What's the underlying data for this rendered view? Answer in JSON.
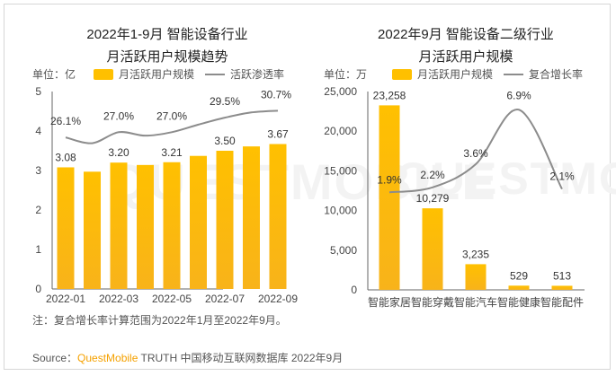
{
  "colors": {
    "bar": "#ffc000",
    "bar_dark": "#f8b31a",
    "line": "#8c8c8c",
    "brand": "#f5a100"
  },
  "watermark": "QUESTMOBILE",
  "chart_data": [
    {
      "type": "bar",
      "title_line1": "2022年1-9月 智能设备行业",
      "title_line2": "月活跃用户规模趋势",
      "unit_label": "单位：亿",
      "legend": [
        "月活跃用户规模",
        "活跃渗透率"
      ],
      "legend_placement": "top",
      "categories": [
        "2022-01",
        "2022-02",
        "2022-03",
        "2022-04",
        "2022-05",
        "2022-06",
        "2022-07",
        "2022-08",
        "2022-09"
      ],
      "x_tick_labels": [
        "2022-01",
        "2022-03",
        "2022-05",
        "2022-07",
        "2022-09"
      ],
      "series": [
        {
          "name": "月活跃用户规模",
          "type": "bar",
          "values": [
            3.08,
            2.97,
            3.2,
            3.14,
            3.21,
            3.37,
            3.5,
            3.61,
            3.67
          ],
          "data_labels": [
            "3.08",
            "",
            "3.20",
            "",
            "3.21",
            "",
            "3.50",
            "",
            "3.67"
          ]
        },
        {
          "name": "活跃渗透率",
          "type": "line",
          "axis": "secondary",
          "values": [
            26.1,
            25.1,
            27.0,
            26.4,
            27.0,
            28.3,
            29.5,
            30.4,
            30.7
          ],
          "data_labels": [
            "26.1%",
            "",
            "27.0%",
            "",
            "27.0%",
            "",
            "29.5%",
            "",
            "30.7%"
          ]
        }
      ],
      "ylim": [
        0,
        5
      ],
      "y_ticks": [
        "0",
        "1",
        "2",
        "3",
        "4",
        "5"
      ],
      "y2lim": [
        0,
        34
      ],
      "grid": false
    },
    {
      "type": "bar",
      "title_line1": "2022年9月 智能设备二级行业",
      "title_line2": "月活跃用户规模",
      "unit_label": "单位：万",
      "legend": [
        "月活跃用户规模",
        "复合增长率"
      ],
      "legend_placement": "top",
      "categories": [
        "智能家居",
        "智能穿戴",
        "智能汽车",
        "智能健康",
        "智能配件"
      ],
      "series": [
        {
          "name": "月活跃用户规模",
          "type": "bar",
          "values": [
            23258,
            10279,
            3235,
            529,
            513
          ],
          "data_labels": [
            "23,258",
            "10,279",
            "3,235",
            "529",
            "513"
          ]
        },
        {
          "name": "复合增长率",
          "type": "line",
          "axis": "secondary",
          "values": [
            1.9,
            2.2,
            3.6,
            6.9,
            2.1
          ],
          "data_labels": [
            "1.9%",
            "2.2%",
            "3.6%",
            "6.9%",
            "2.1%"
          ]
        }
      ],
      "ylim": [
        0,
        25000
      ],
      "y_ticks": [
        "0",
        "5,000",
        "10,000",
        "15,000",
        "20,000",
        "25,000"
      ],
      "y2lim": [
        -4,
        8
      ],
      "grid": false
    }
  ],
  "note": "注：复合增长率计算范围为2022年1月至2022年9月。",
  "source": {
    "prefix": "Source：",
    "brand": "QuestMobile",
    "rest": " TRUTH 中国移动互联网数据库 2022年9月"
  }
}
